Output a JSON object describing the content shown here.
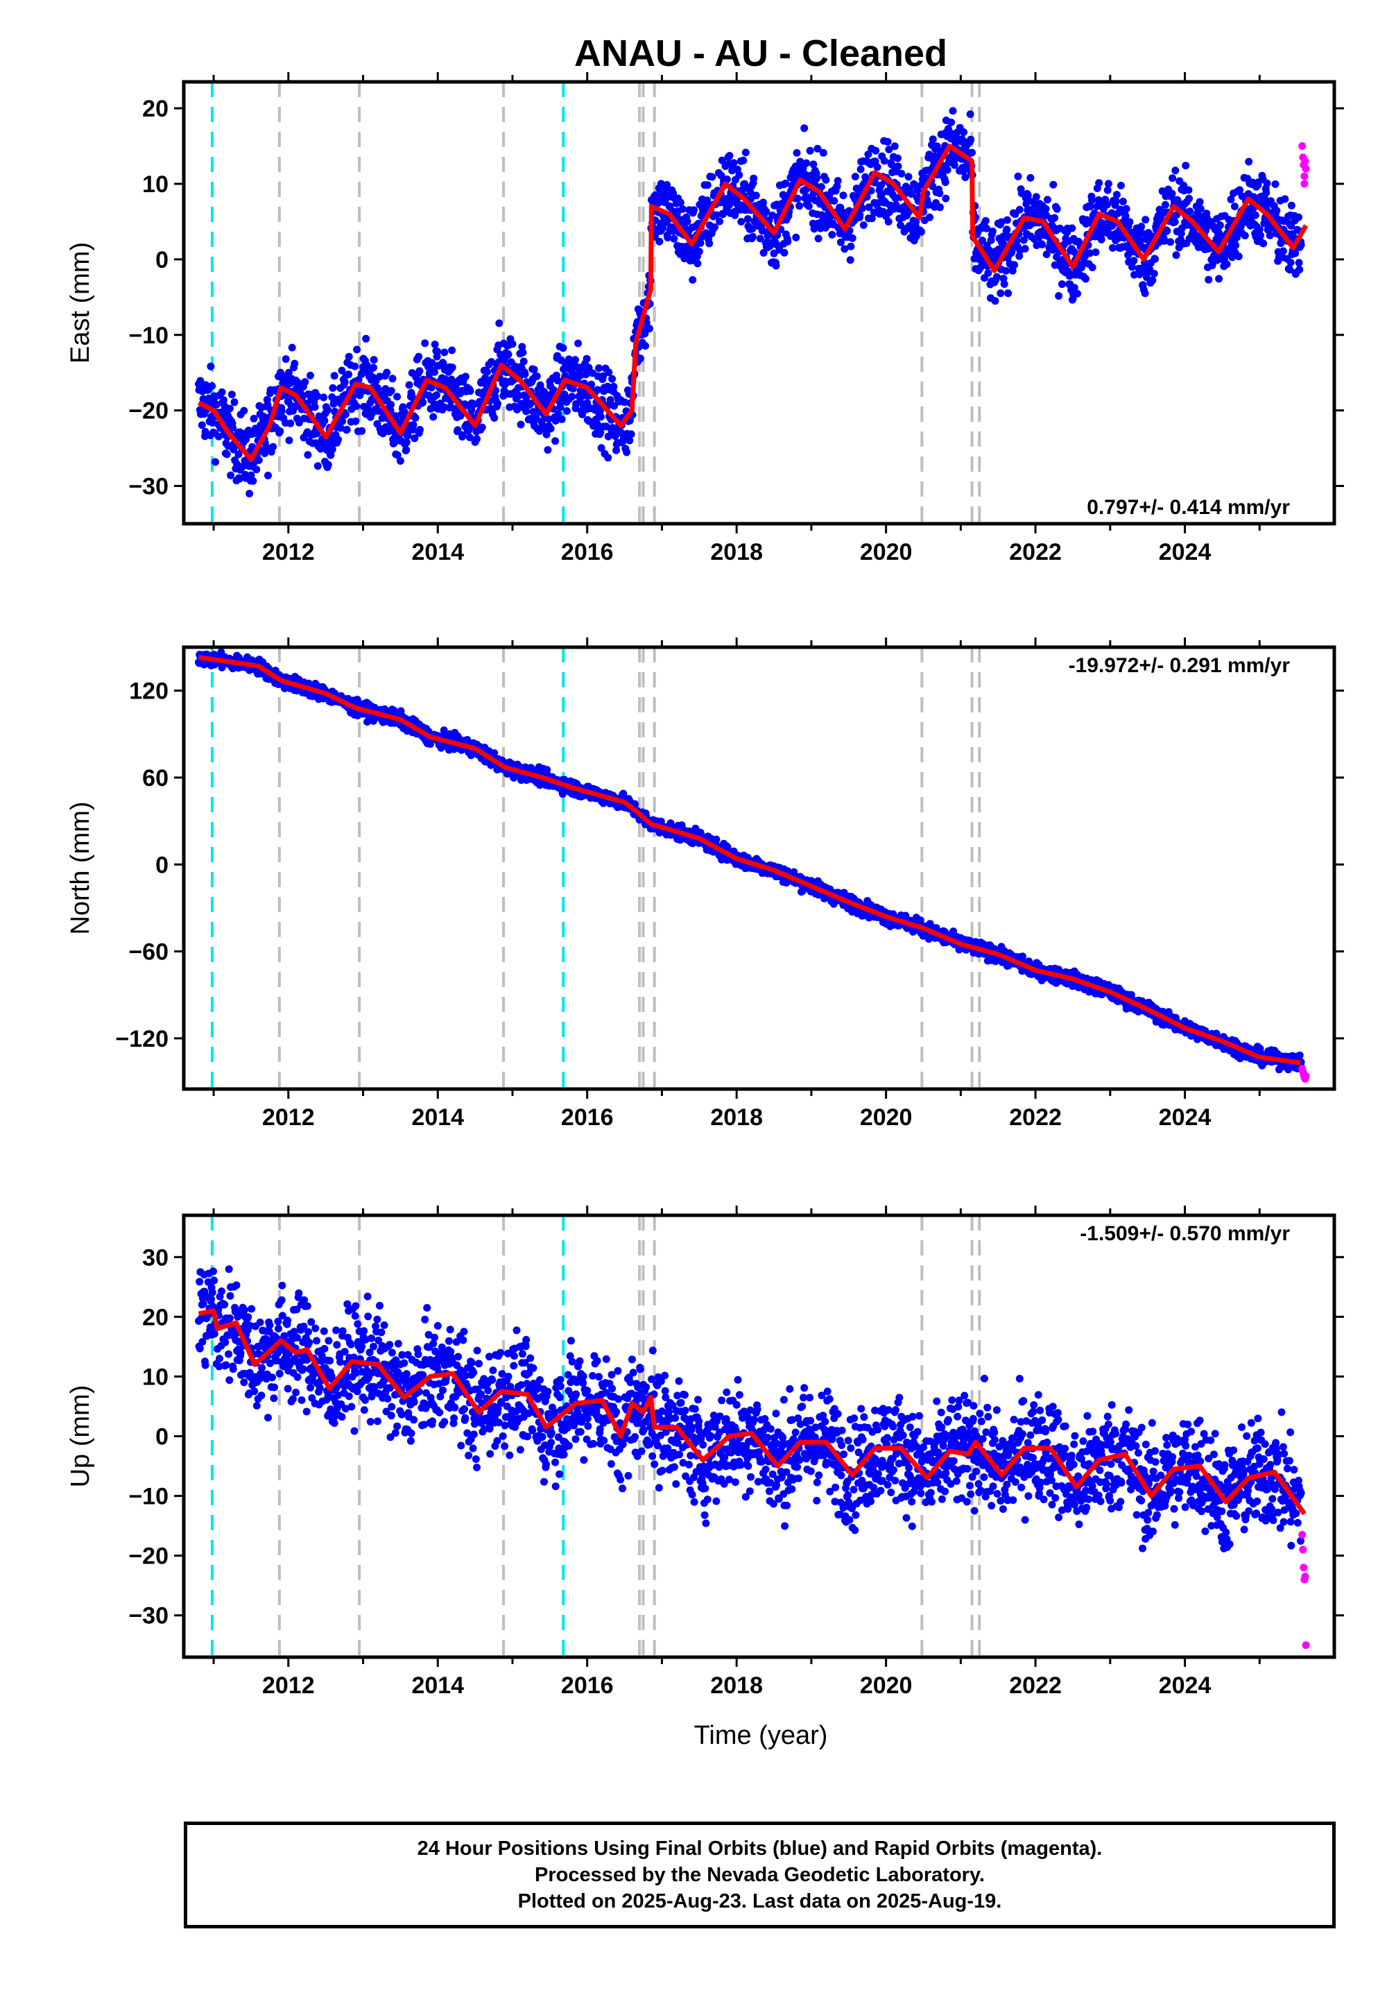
{
  "title": "ANAU  - AU - Cleaned",
  "xlabel": "Time (year)",
  "footer": {
    "line1": "24 Hour Positions Using Final Orbits (blue) and Rapid Orbits (magenta).",
    "line2": "Processed by the Nevada Geodetic Laboratory.",
    "line3": "Plotted on 2025-Aug-23. Last data on 2025-Aug-19."
  },
  "colors": {
    "final_orbits": "#0000ff",
    "rapid_orbits": "#ff00ff",
    "model_fit": "#ff0000",
    "antenna_change": "#00e5ee",
    "equipment_change": "#bebebe"
  },
  "chart_data": [
    {
      "type": "scatter",
      "name": "east",
      "ylabel": "East (mm)",
      "rate": "0.797+/- 0.414 mm/yr",
      "xlim": [
        2010.6,
        2026.0
      ],
      "ylim": [
        -35,
        23.5
      ],
      "xticks": [
        2012,
        2014,
        2016,
        2018,
        2020,
        2022,
        2024
      ],
      "yticks": [
        -30,
        -20,
        -10,
        0,
        10,
        20
      ],
      "steps": [
        {
          "t": 2016.65,
          "dy": 9
        },
        {
          "t": 2016.85,
          "dy": 12
        },
        {
          "t": 2021.15,
          "dy": -13
        }
      ],
      "model_knots": [
        [
          2010.8,
          -19
        ],
        [
          2011.0,
          -20
        ],
        [
          2011.2,
          -23
        ],
        [
          2011.5,
          -26.5
        ],
        [
          2011.75,
          -22
        ],
        [
          2011.9,
          -17
        ],
        [
          2012.1,
          -18
        ],
        [
          2012.5,
          -23.5
        ],
        [
          2012.9,
          -16.5
        ],
        [
          2013.1,
          -17
        ],
        [
          2013.5,
          -23
        ],
        [
          2013.85,
          -16
        ],
        [
          2014.1,
          -17
        ],
        [
          2014.5,
          -22
        ],
        [
          2014.85,
          -14
        ],
        [
          2015.1,
          -16
        ],
        [
          2015.45,
          -20.5
        ],
        [
          2015.7,
          -16
        ],
        [
          2016.0,
          -17
        ],
        [
          2016.45,
          -22
        ],
        [
          2016.6,
          -20
        ],
        [
          2016.65,
          -11
        ],
        [
          2016.85,
          -4
        ],
        [
          2016.86,
          7
        ],
        [
          2017.1,
          6
        ],
        [
          2017.4,
          2
        ],
        [
          2017.85,
          10
        ],
        [
          2018.1,
          8
        ],
        [
          2018.5,
          3.5
        ],
        [
          2018.85,
          10.5
        ],
        [
          2019.1,
          9
        ],
        [
          2019.45,
          4
        ],
        [
          2019.85,
          11.5
        ],
        [
          2020.1,
          10
        ],
        [
          2020.45,
          5.5
        ],
        [
          2020.5,
          9
        ],
        [
          2020.85,
          15
        ],
        [
          2021.15,
          13
        ],
        [
          2021.16,
          3
        ],
        [
          2021.45,
          -1.5
        ],
        [
          2021.85,
          5.5
        ],
        [
          2022.1,
          5
        ],
        [
          2022.5,
          -1
        ],
        [
          2022.85,
          6
        ],
        [
          2023.1,
          5
        ],
        [
          2023.45,
          0
        ],
        [
          2023.85,
          7
        ],
        [
          2024.1,
          5
        ],
        [
          2024.45,
          1
        ],
        [
          2024.85,
          8
        ],
        [
          2025.1,
          6
        ],
        [
          2025.45,
          1.5
        ],
        [
          2025.62,
          4.5
        ]
      ],
      "scatter_amplitude": 2.5,
      "rapid_points": [
        [
          2025.57,
          15
        ],
        [
          2025.58,
          13.5
        ],
        [
          2025.59,
          12.5
        ],
        [
          2025.6,
          11
        ],
        [
          2025.6,
          10
        ],
        [
          2025.61,
          13
        ],
        [
          2025.62,
          12
        ]
      ]
    },
    {
      "type": "scatter",
      "name": "north",
      "ylabel": "North (mm)",
      "rate": "-19.972+/- 0.291 mm/yr",
      "xlim": [
        2010.6,
        2026.0
      ],
      "ylim": [
        -155,
        150
      ],
      "xticks": [
        2012,
        2014,
        2016,
        2018,
        2020,
        2022,
        2024
      ],
      "yticks": [
        -120,
        -60,
        0,
        60,
        120
      ],
      "steps": [],
      "model_knots": [
        [
          2010.8,
          143
        ],
        [
          2011.2,
          140
        ],
        [
          2011.6,
          137
        ],
        [
          2011.9,
          127
        ],
        [
          2012.5,
          118
        ],
        [
          2012.9,
          108
        ],
        [
          2013.5,
          100
        ],
        [
          2013.9,
          88
        ],
        [
          2014.5,
          80
        ],
        [
          2014.9,
          67
        ],
        [
          2015.4,
          60
        ],
        [
          2015.8,
          53
        ],
        [
          2016.5,
          43
        ],
        [
          2016.65,
          37
        ],
        [
          2016.85,
          28
        ],
        [
          2017.5,
          18
        ],
        [
          2018.0,
          4
        ],
        [
          2018.5,
          -4
        ],
        [
          2019.0,
          -15
        ],
        [
          2019.5,
          -26
        ],
        [
          2020.0,
          -36
        ],
        [
          2020.5,
          -44
        ],
        [
          2021.0,
          -55
        ],
        [
          2021.5,
          -62
        ],
        [
          2022.0,
          -73
        ],
        [
          2022.5,
          -79
        ],
        [
          2023.0,
          -88
        ],
        [
          2023.5,
          -100
        ],
        [
          2024.0,
          -113
        ],
        [
          2024.5,
          -122
        ],
        [
          2025.0,
          -133
        ],
        [
          2025.55,
          -137
        ]
      ],
      "scatter_amplitude": 2.5,
      "rapid_points": [
        [
          2025.57,
          -141
        ],
        [
          2025.58,
          -143
        ],
        [
          2025.59,
          -145
        ],
        [
          2025.6,
          -147
        ],
        [
          2025.61,
          -148
        ],
        [
          2025.62,
          -146
        ]
      ]
    },
    {
      "type": "scatter",
      "name": "up",
      "ylabel": "Up (mm)",
      "rate": "-1.509+/- 0.570 mm/yr",
      "xlim": [
        2010.6,
        2026.0
      ],
      "ylim": [
        -37,
        37
      ],
      "xticks": [
        2012,
        2014,
        2016,
        2018,
        2020,
        2022,
        2024
      ],
      "yticks": [
        -30,
        -20,
        -10,
        0,
        10,
        20,
        30
      ],
      "steps": [],
      "model_knots": [
        [
          2010.8,
          20.5
        ],
        [
          2011.0,
          21
        ],
        [
          2011.05,
          18
        ],
        [
          2011.3,
          19
        ],
        [
          2011.55,
          12
        ],
        [
          2011.9,
          16
        ],
        [
          2012.1,
          14
        ],
        [
          2012.25,
          14.5
        ],
        [
          2012.55,
          8
        ],
        [
          2012.85,
          12.5
        ],
        [
          2013.2,
          12
        ],
        [
          2013.55,
          6.5
        ],
        [
          2013.9,
          10
        ],
        [
          2014.2,
          10.5
        ],
        [
          2014.55,
          4
        ],
        [
          2014.85,
          7.5
        ],
        [
          2015.2,
          7
        ],
        [
          2015.45,
          1.5
        ],
        [
          2015.85,
          5.5
        ],
        [
          2016.2,
          6
        ],
        [
          2016.45,
          0
        ],
        [
          2016.6,
          5.5
        ],
        [
          2016.75,
          4
        ],
        [
          2016.85,
          6.5
        ],
        [
          2016.9,
          1.5
        ],
        [
          2017.2,
          1.5
        ],
        [
          2017.55,
          -4
        ],
        [
          2017.9,
          0
        ],
        [
          2018.2,
          0.5
        ],
        [
          2018.55,
          -5
        ],
        [
          2018.85,
          -1
        ],
        [
          2019.2,
          -1
        ],
        [
          2019.55,
          -6.5
        ],
        [
          2019.85,
          -2
        ],
        [
          2020.2,
          -2
        ],
        [
          2020.55,
          -7
        ],
        [
          2020.85,
          -2.5
        ],
        [
          2021.1,
          -3
        ],
        [
          2021.2,
          -1
        ],
        [
          2021.55,
          -6.5
        ],
        [
          2021.85,
          -2
        ],
        [
          2022.2,
          -2
        ],
        [
          2022.55,
          -8.5
        ],
        [
          2022.85,
          -4
        ],
        [
          2023.2,
          -3
        ],
        [
          2023.55,
          -10
        ],
        [
          2023.85,
          -5.5
        ],
        [
          2024.2,
          -5
        ],
        [
          2024.55,
          -11
        ],
        [
          2024.85,
          -7
        ],
        [
          2025.2,
          -6
        ],
        [
          2025.6,
          -13
        ]
      ],
      "scatter_amplitude": 4.5,
      "rapid_points": [
        [
          2025.57,
          -16.5
        ],
        [
          2025.58,
          -19
        ],
        [
          2025.59,
          -22
        ],
        [
          2025.6,
          -24
        ],
        [
          2025.61,
          -23.5
        ],
        [
          2025.62,
          -35
        ]
      ]
    }
  ],
  "event_lines": {
    "antenna": [
      2010.98,
      2015.68
    ],
    "equipment": [
      2011.88,
      2012.95,
      2014.88,
      2016.7,
      2016.75,
      2016.9,
      2020.48,
      2021.15,
      2021.25
    ]
  }
}
